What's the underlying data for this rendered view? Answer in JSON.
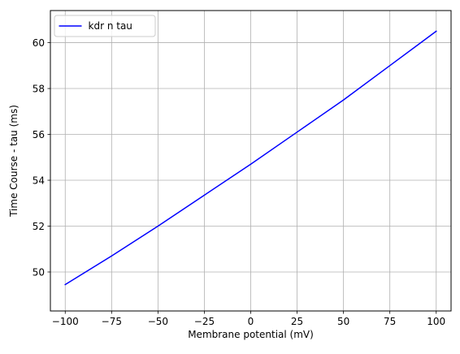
{
  "chart_data": {
    "type": "line",
    "title": "",
    "xlabel": "Membrane potential (mV)",
    "ylabel": "Time Course - tau (ms)",
    "xlim": [
      -108,
      108
    ],
    "ylim": [
      48.3,
      61.4
    ],
    "xticks": [
      -100,
      -75,
      -50,
      -25,
      0,
      25,
      50,
      75,
      100
    ],
    "xtick_labels": [
      "−100",
      "−75",
      "−50",
      "−25",
      "0",
      "25",
      "50",
      "75",
      "100"
    ],
    "yticks": [
      50,
      52,
      54,
      56,
      58,
      60
    ],
    "ytick_labels": [
      "50",
      "52",
      "54",
      "56",
      "58",
      "60"
    ],
    "grid": true,
    "legend": "top-left",
    "series": [
      {
        "name": "kdr n tau",
        "color": "#0000ff",
        "x": [
          -100,
          -75,
          -50,
          -25,
          0,
          25,
          50,
          75,
          100
        ],
        "y": [
          49.45,
          50.7,
          52.0,
          53.35,
          54.7,
          56.1,
          57.5,
          59.0,
          60.5
        ]
      }
    ]
  }
}
